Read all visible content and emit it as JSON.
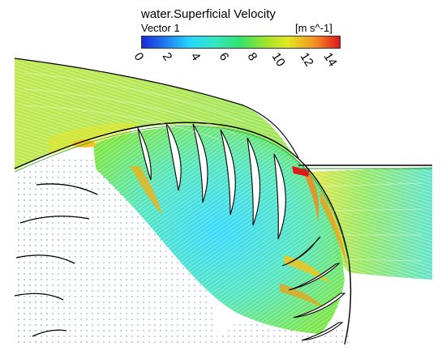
{
  "legend": {
    "title": "water.Superficial Velocity",
    "subtitle": "Vector 1",
    "unit": "[m s^-1]",
    "ticks": [
      "0",
      "2",
      "4",
      "6",
      "8",
      "10",
      "12",
      "14"
    ],
    "range": [
      0,
      14
    ]
  },
  "colors": {
    "low": "#1a2ad8",
    "mid_low": "#23d6ff",
    "mid": "#33e36a",
    "mid_high": "#e3e620",
    "high": "#e0161c",
    "quiet": "#3b4fd0",
    "blade": "#000000"
  }
}
